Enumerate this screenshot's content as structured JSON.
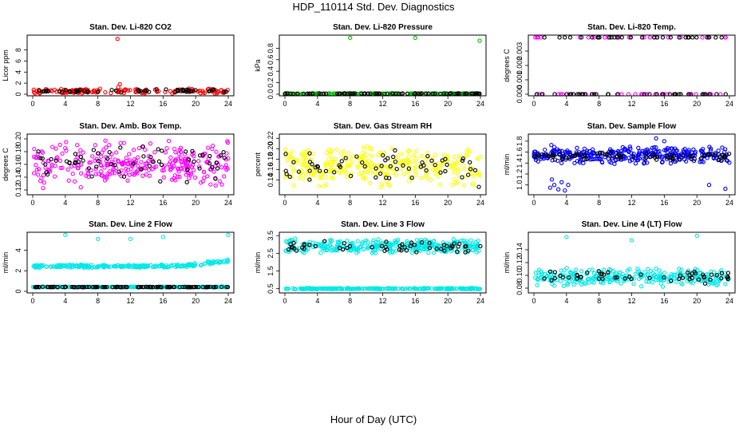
{
  "page_title": "HDP_110114  Std. Dev. Diagnostics",
  "x_axis_title": "Hour of Day (UTC)",
  "chart_data": [
    {
      "type": "scatter",
      "title": "Stan. Dev. Li-820 CO2",
      "xlabel": "",
      "ylabel": "Licor ppm",
      "xlim": [
        0,
        24
      ],
      "ylim": [
        0,
        10.4
      ],
      "xticks": [
        "0",
        "4",
        "8",
        "12",
        "16",
        "20",
        "24"
      ],
      "yticks": [
        "0",
        "2",
        "4",
        "6",
        "8"
      ],
      "series": [
        {
          "name": "line",
          "color": "#ff0000",
          "noise_base": 0.55,
          "noise_amp": 0.35,
          "density": 150,
          "pattern": "band",
          "outliers": [
            [
              10.4,
              10.0
            ],
            [
              10.5,
              1.3
            ],
            [
              10.7,
              1.8
            ],
            [
              1.6,
              0.9
            ]
          ]
        },
        {
          "name": "reference",
          "color": "#000000",
          "noise_base": 0.6,
          "noise_amp": 0.25,
          "density": 55,
          "pattern": "band",
          "outliers": []
        }
      ]
    },
    {
      "type": "scatter",
      "title": "Stan. Dev. Li-820 Pressure",
      "xlabel": "",
      "ylabel": "kPa",
      "xlim": [
        0,
        24
      ],
      "ylim": [
        0,
        1.0
      ],
      "xticks": [
        "0",
        "4",
        "8",
        "12",
        "16",
        "20",
        "24"
      ],
      "yticks": [
        "0.0",
        "0.2",
        "0.4",
        "0.6",
        "0.8"
      ],
      "series": [
        {
          "name": "line",
          "color": "#00c000",
          "noise_base": 0.01,
          "noise_amp": 0.005,
          "density": 160,
          "pattern": "band",
          "outliers": [
            [
              8.0,
              0.98
            ],
            [
              16.0,
              0.98
            ],
            [
              23.9,
              0.93
            ],
            [
              0.1,
              0.02
            ]
          ]
        },
        {
          "name": "reference",
          "color": "#000000",
          "noise_base": 0.01,
          "noise_amp": 0.005,
          "density": 80,
          "pattern": "band",
          "outliers": []
        }
      ]
    },
    {
      "type": "scatter",
      "title": "Stan. Dev. Li-820 Temp.",
      "xlabel": "",
      "ylabel": "degrees C",
      "xlim": [
        0,
        24
      ],
      "ylim": [
        0,
        0.004
      ],
      "xticks": [
        "0",
        "4",
        "8",
        "12",
        "16",
        "20",
        "24"
      ],
      "yticks": [
        "0.000",
        "0.001",
        "0.002",
        "0.003"
      ],
      "series": [
        {
          "name": "line",
          "color": "#ff00ff",
          "noise_base": 0.0,
          "noise_amp": 0.0,
          "density": 60,
          "pattern": "two-level",
          "levels": [
            0.0,
            0.00395
          ],
          "outliers": []
        },
        {
          "name": "reference",
          "color": "#000000",
          "noise_base": 0.0,
          "noise_amp": 0.0,
          "density": 70,
          "pattern": "two-level",
          "levels": [
            0.0,
            0.00395
          ],
          "outliers": []
        }
      ]
    },
    {
      "type": "scatter",
      "title": "Stan. Dev. Amb. Box Temp.",
      "xlabel": "",
      "ylabel": "degrees C",
      "xlim": [
        0,
        24
      ],
      "ylim": [
        0.115,
        0.205
      ],
      "xticks": [
        "0",
        "4",
        "8",
        "12",
        "16",
        "20",
        "24"
      ],
      "yticks": [
        "0.12",
        "0.14",
        "0.16",
        "0.18",
        "0.20"
      ],
      "series": [
        {
          "name": "line",
          "color": "#ff00ff",
          "noise_base": 0.16,
          "noise_amp": 0.028,
          "density": 300,
          "pattern": "band",
          "outliers": []
        },
        {
          "name": "reference",
          "color": "#000000",
          "noise_base": 0.16,
          "noise_amp": 0.022,
          "density": 60,
          "pattern": "band",
          "outliers": []
        }
      ]
    },
    {
      "type": "scatter",
      "title": "Stan. Dev. Gas Stream RH",
      "xlabel": "",
      "ylabel": "percent",
      "xlim": [
        0,
        24
      ],
      "ylim": [
        0.115,
        0.225
      ],
      "xticks": [
        "0",
        "4",
        "8",
        "12",
        "16",
        "20",
        "24"
      ],
      "yticks": [
        "0.14",
        "0.16",
        "0.18",
        "0.20",
        "0.22"
      ],
      "series": [
        {
          "name": "line",
          "color": "#ffff00",
          "noise_base": 0.168,
          "noise_amp": 0.03,
          "density": 300,
          "pattern": "band",
          "outliers": []
        },
        {
          "name": "reference",
          "color": "#000000",
          "noise_base": 0.168,
          "noise_amp": 0.025,
          "density": 60,
          "pattern": "band",
          "outliers": [
            [
              23.8,
              0.127
            ],
            [
              22.5,
              0.15
            ]
          ]
        }
      ]
    },
    {
      "type": "scatter",
      "title": "Stan. Dev. Sample Flow",
      "xlabel": "",
      "ylabel": "ml/min",
      "xlim": [
        0,
        24
      ],
      "ylim": [
        0.85,
        1.9
      ],
      "xticks": [
        "0",
        "4",
        "8",
        "12",
        "16",
        "20",
        "24"
      ],
      "yticks": [
        "1.0",
        "1.2",
        "1.4",
        "1.6",
        "1.8"
      ],
      "series": [
        {
          "name": "line",
          "color": "#0000ff",
          "noise_base": 1.55,
          "noise_amp": 0.13,
          "density": 320,
          "pattern": "band",
          "outliers": [
            [
              2.0,
              0.95
            ],
            [
              2.5,
              1.0
            ],
            [
              3.0,
              0.92
            ],
            [
              3.4,
              1.05
            ],
            [
              2.2,
              1.1
            ],
            [
              3.8,
              0.9
            ],
            [
              4.2,
              1.0
            ],
            [
              21.5,
              1.0
            ],
            [
              23.5,
              0.93
            ],
            [
              15.0,
              1.85
            ],
            [
              16.0,
              1.8
            ]
          ]
        },
        {
          "name": "reference",
          "color": "#000000",
          "noise_base": 1.52,
          "noise_amp": 0.06,
          "density": 70,
          "pattern": "band",
          "outliers": []
        }
      ]
    },
    {
      "type": "scatter",
      "title": "Stan. Dev. Line 2 Flow",
      "xlabel": "",
      "ylabel": "ml/min",
      "xlim": [
        0,
        24
      ],
      "ylim": [
        0,
        5.6
      ],
      "xticks": [
        "0",
        "4",
        "8",
        "12",
        "16",
        "20",
        "24"
      ],
      "yticks": [
        "0",
        "2",
        "4"
      ],
      "series": [
        {
          "name": "line",
          "color": "#00e8e8",
          "noise_base": 2.45,
          "noise_amp": 0.12,
          "density": 250,
          "pattern": "rising",
          "rise_start": 18.5,
          "rise_end": 3.0,
          "outliers": [
            [
              4.0,
              5.5
            ],
            [
              8.0,
              5.1
            ],
            [
              12.0,
              5.1
            ],
            [
              16.0,
              5.3
            ],
            [
              24.0,
              5.5
            ]
          ]
        },
        {
          "name": "line-low",
          "color": "#00e8e8",
          "noise_base": 0.42,
          "noise_amp": 0.03,
          "density": 220,
          "pattern": "band",
          "outliers": []
        },
        {
          "name": "reference",
          "color": "#000000",
          "noise_base": 0.42,
          "noise_amp": 0.02,
          "density": 110,
          "pattern": "band",
          "outliers": []
        }
      ]
    },
    {
      "type": "scatter",
      "title": "Stan. Dev. Line 3 Flow",
      "xlabel": "",
      "ylabel": "ml/min",
      "xlim": [
        0,
        24
      ],
      "ylim": [
        0.35,
        3.6
      ],
      "xticks": [
        "0",
        "4",
        "8",
        "12",
        "16",
        "20",
        "24"
      ],
      "yticks": [
        "0.5",
        "1.5",
        "2.5",
        "3.5"
      ],
      "series": [
        {
          "name": "line",
          "color": "#00e8e8",
          "noise_base": 2.9,
          "noise_amp": 0.32,
          "density": 320,
          "pattern": "band",
          "outliers": []
        },
        {
          "name": "line-low",
          "color": "#00e8e8",
          "noise_base": 0.5,
          "noise_amp": 0.03,
          "density": 220,
          "pattern": "band",
          "outliers": []
        },
        {
          "name": "reference",
          "color": "#000000",
          "noise_base": 2.85,
          "noise_amp": 0.25,
          "density": 55,
          "pattern": "band",
          "outliers": []
        }
      ]
    },
    {
      "type": "scatter",
      "title": "Stan. Dev. Line 4 (LT) Flow",
      "xlabel": "",
      "ylabel": "ml/min",
      "xlim": [
        0,
        24
      ],
      "ylim": [
        0.075,
        0.165
      ],
      "xticks": [
        "0",
        "4",
        "8",
        "12",
        "16",
        "20",
        "24"
      ],
      "yticks": [
        "0.08",
        "0.10",
        "0.12",
        "0.14"
      ],
      "series": [
        {
          "name": "line",
          "color": "#00e8e8",
          "noise_base": 0.097,
          "noise_amp": 0.011,
          "density": 300,
          "pattern": "band",
          "outliers": [
            [
              4.0,
              0.16
            ],
            [
              12.0,
              0.155
            ],
            [
              20.0,
              0.162
            ]
          ]
        },
        {
          "name": "reference",
          "color": "#000000",
          "noise_base": 0.097,
          "noise_amp": 0.008,
          "density": 55,
          "pattern": "band",
          "outliers": []
        }
      ]
    }
  ]
}
